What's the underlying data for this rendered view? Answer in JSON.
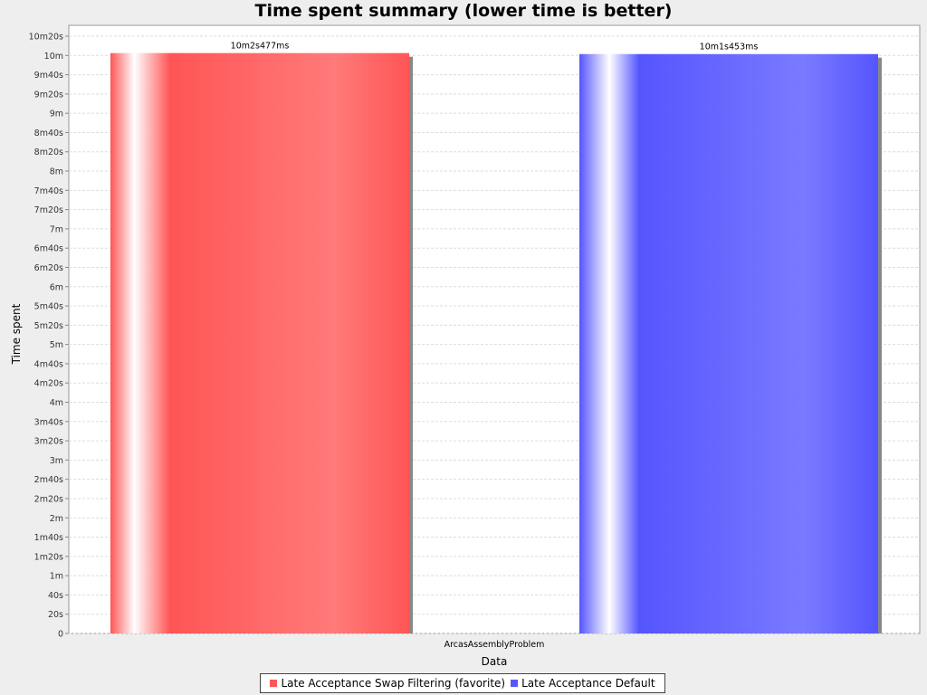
{
  "chart_data": {
    "type": "bar",
    "title": "Time spent summary (lower time is better)",
    "xlabel": "Data",
    "ylabel": "Time spent",
    "categories": [
      "ArcasAssemblyProblem"
    ],
    "series": [
      {
        "name": "Late Acceptance Swap Filtering (favorite)",
        "values": [
          602477
        ],
        "label": "10m2s477ms",
        "color": "#ff5555"
      },
      {
        "name": "Late Acceptance Default",
        "values": [
          601453
        ],
        "label": "10m1s453ms",
        "color": "#5555ff"
      }
    ],
    "ylim": [
      0,
      620000
    ],
    "y_ticks": [
      {
        "value": 0,
        "label": "0"
      },
      {
        "value": 20000,
        "label": "20s"
      },
      {
        "value": 40000,
        "label": "40s"
      },
      {
        "value": 60000,
        "label": "1m"
      },
      {
        "value": 80000,
        "label": "1m20s"
      },
      {
        "value": 100000,
        "label": "1m40s"
      },
      {
        "value": 120000,
        "label": "2m"
      },
      {
        "value": 140000,
        "label": "2m20s"
      },
      {
        "value": 160000,
        "label": "2m40s"
      },
      {
        "value": 180000,
        "label": "3m"
      },
      {
        "value": 200000,
        "label": "3m20s"
      },
      {
        "value": 220000,
        "label": "3m40s"
      },
      {
        "value": 240000,
        "label": "4m"
      },
      {
        "value": 260000,
        "label": "4m20s"
      },
      {
        "value": 280000,
        "label": "4m40s"
      },
      {
        "value": 300000,
        "label": "5m"
      },
      {
        "value": 320000,
        "label": "5m20s"
      },
      {
        "value": 340000,
        "label": "5m40s"
      },
      {
        "value": 360000,
        "label": "6m"
      },
      {
        "value": 380000,
        "label": "6m20s"
      },
      {
        "value": 400000,
        "label": "6m40s"
      },
      {
        "value": 420000,
        "label": "7m"
      },
      {
        "value": 440000,
        "label": "7m20s"
      },
      {
        "value": 460000,
        "label": "7m40s"
      },
      {
        "value": 480000,
        "label": "8m"
      },
      {
        "value": 500000,
        "label": "8m20s"
      },
      {
        "value": 520000,
        "label": "8m40s"
      },
      {
        "value": 540000,
        "label": "9m"
      },
      {
        "value": 560000,
        "label": "9m20s"
      },
      {
        "value": 580000,
        "label": "9m40s"
      },
      {
        "value": 600000,
        "label": "10m"
      },
      {
        "value": 620000,
        "label": "10m20s"
      }
    ],
    "grid": true,
    "legend_position": "bottom"
  }
}
